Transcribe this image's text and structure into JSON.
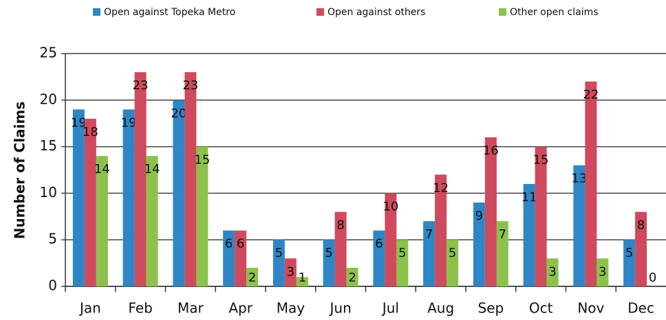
{
  "chart_data": {
    "type": "bar",
    "y_axis_label": "Number of Claims",
    "categories": [
      "Jan",
      "Feb",
      "Mar",
      "Apr",
      "May",
      "Jun",
      "Jul",
      "Aug",
      "Sep",
      "Oct",
      "Nov",
      "Dec"
    ],
    "series": [
      {
        "name": "Open against Topeka Metro",
        "color": "#2f86c6",
        "values": [
          19,
          19,
          20,
          6,
          5,
          5,
          6,
          7,
          9,
          11,
          13,
          5
        ]
      },
      {
        "name": "Open against others",
        "color": "#cf4a5c",
        "values": [
          18,
          23,
          23,
          6,
          3,
          8,
          10,
          12,
          16,
          15,
          22,
          8
        ]
      },
      {
        "name": "Other open claims",
        "color": "#8cc24c",
        "values": [
          14,
          14,
          15,
          2,
          1,
          2,
          5,
          5,
          7,
          3,
          3,
          0
        ]
      }
    ],
    "ylim": [
      0,
      25
    ],
    "yticks": [
      0,
      5,
      10,
      15,
      20,
      25
    ],
    "grid": true,
    "legend": "top"
  }
}
